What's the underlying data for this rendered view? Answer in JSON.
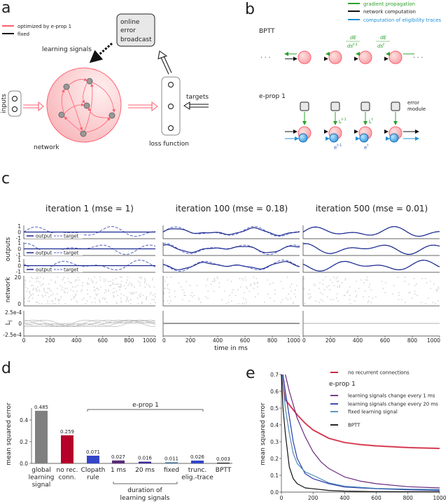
{
  "panel_a": {
    "label": "a",
    "legend": [
      {
        "text": "optimized by e-prop 1",
        "color": "#ff6070"
      },
      {
        "text": "fixed",
        "color": "#111111"
      }
    ],
    "broadcast_box": [
      "online",
      "error",
      "broadcast"
    ],
    "learning_signals": "learning signals",
    "inputs": "inputs",
    "network": "network",
    "loss_function": "loss function",
    "targets": "targets"
  },
  "panel_b": {
    "label": "b",
    "legend": [
      {
        "text": "gradient propagation",
        "color": "#2ca02c"
      },
      {
        "text": "network computation",
        "color": "#111111"
      },
      {
        "text": "computation of eligibility traces",
        "color": "#1f8fd8"
      }
    ],
    "bptt": "BPTT",
    "eprop": "e-prop 1",
    "dE_num": "dE",
    "dE_den1": "ds",
    "sup1": "t-1",
    "sup2": "t",
    "L": "L",
    "e": "e",
    "error_module": [
      "error",
      "module"
    ],
    "dots": "· · ·"
  },
  "panel_c": {
    "label": "c",
    "titles": [
      "iteration 1 (mse = 1)",
      "iteration 100 (mse = 0.18)",
      "iteration 500 (mse = 0.01)"
    ],
    "ylabels": {
      "outputs": "outputs",
      "network": "network",
      "lj": "L",
      "lj_sub": "j"
    },
    "yticks_out": [
      "1",
      "0",
      "-1"
    ],
    "yticks_net": [
      "20",
      "0"
    ],
    "yticks_lj": [
      "2.5e-4",
      "0",
      "-2.5e-4"
    ],
    "legend": {
      "output": "output",
      "target": "target"
    },
    "xticks": [
      "0",
      "200",
      "400",
      "600",
      "800",
      "1000"
    ],
    "xlabel": "time in ms"
  },
  "chart_data": [
    {
      "panel": "d",
      "label": "d",
      "type": "bar",
      "ylabel": "mean squared error",
      "ylim": [
        0,
        0.5
      ],
      "yticks": [
        "0.0",
        "0.2",
        "0.4"
      ],
      "categories": [
        [
          "global",
          "learning",
          "signal"
        ],
        [
          "no rec.",
          "conn."
        ],
        [
          "Clopath",
          "rule"
        ],
        [
          "1 ms"
        ],
        [
          "20 ms"
        ],
        [
          "fixed"
        ],
        [
          "trunc.",
          "elig.-trace"
        ],
        [
          "BPTT"
        ]
      ],
      "values": [
        0.485,
        0.259,
        0.071,
        0.027,
        0.016,
        0.011,
        0.026,
        0.003
      ],
      "value_labels": [
        "0.485",
        "0.259",
        "0.071",
        "0.027",
        "0.016",
        "0.011",
        "0.026",
        "0.003"
      ],
      "colors": [
        "#808080",
        "#b5002a",
        "#3446c8",
        "#5a2a78",
        "#3a2a9a",
        "#4a7aa8",
        "#3446c8",
        "#111111"
      ],
      "group_label": "e-prop 1",
      "sub_group_label": [
        "duration of",
        "learning signals"
      ]
    },
    {
      "panel": "e",
      "label": "e",
      "type": "line",
      "ylabel": "mean squared error",
      "xlim": [
        0,
        1000
      ],
      "ylim": [
        0,
        0.7
      ],
      "xticks": [
        "0",
        "200",
        "400",
        "600",
        "800",
        "1000"
      ],
      "yticks": [
        "0.0",
        "0.1",
        "0.2",
        "0.3",
        "0.4",
        "0.5",
        "0.6",
        "0.7"
      ],
      "legend_group": "e-prop 1",
      "series": [
        {
          "name": "no recurrent connections",
          "color": "#c8102e",
          "x": [
            0,
            25,
            50,
            100,
            150,
            200,
            300,
            400,
            500,
            600,
            800,
            1000
          ],
          "y": [
            0.7,
            0.55,
            0.52,
            0.46,
            0.41,
            0.37,
            0.32,
            0.295,
            0.283,
            0.275,
            0.265,
            0.26
          ]
        },
        {
          "name": "learning signals change every 1 ms",
          "color": "#6a2a80",
          "x": [
            25,
            50,
            100,
            150,
            200,
            250,
            300,
            400,
            500,
            600,
            800,
            1000
          ],
          "y": [
            0.7,
            0.6,
            0.44,
            0.33,
            0.24,
            0.18,
            0.14,
            0.09,
            0.065,
            0.05,
            0.032,
            0.025
          ]
        },
        {
          "name": "learning signals change every 20 ms",
          "color": "#2e3aa8",
          "x": [
            10,
            25,
            50,
            75,
            100,
            150,
            200,
            300,
            400,
            600,
            800,
            1000
          ],
          "y": [
            0.7,
            0.6,
            0.45,
            0.3,
            0.2,
            0.11,
            0.08,
            0.05,
            0.03,
            0.02,
            0.014,
            0.01
          ]
        },
        {
          "name": "fixed learning signal",
          "color": "#4a8ab8",
          "x": [
            5,
            25,
            50,
            75,
            100,
            150,
            200,
            300,
            400,
            600,
            800,
            1000
          ],
          "y": [
            0.7,
            0.5,
            0.35,
            0.23,
            0.17,
            0.12,
            0.1,
            0.055,
            0.035,
            0.022,
            0.018,
            0.015
          ]
        },
        {
          "name": "BPTT",
          "color": "#111111",
          "x": [
            0,
            10,
            25,
            50,
            75,
            100,
            150,
            200,
            300,
            400,
            600,
            1000
          ],
          "y": [
            0.7,
            0.5,
            0.35,
            0.15,
            0.08,
            0.05,
            0.025,
            0.02,
            0.01,
            0.006,
            0.003,
            0.002
          ]
        }
      ]
    }
  ]
}
